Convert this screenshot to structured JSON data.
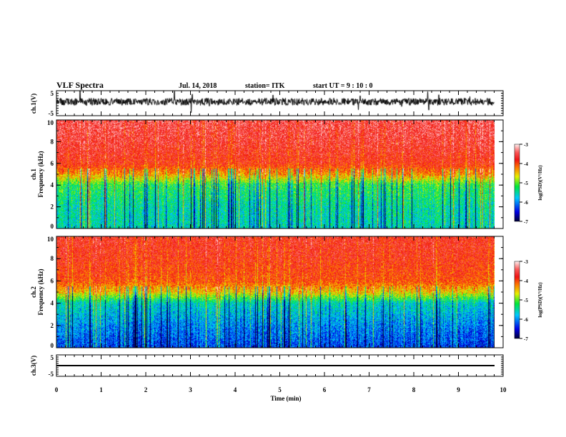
{
  "header": {
    "title": "VLF Spectra",
    "date": "Jul. 14, 2018",
    "station": "station= ITK",
    "start": "start UT =  9 : 10 : 0"
  },
  "colors": {
    "trace": "#000000",
    "background": "#ffffff"
  },
  "chart_data": [
    {
      "type": "line",
      "name": "ch1-waveform",
      "ylabel": "ch.1(V)",
      "ylim": [
        -5,
        5
      ],
      "yticks": [
        "5",
        "-5"
      ],
      "xlim": [
        0,
        10
      ],
      "data_end_min": 9.8,
      "description_values": "noisy broadband waveform, mostly within about -2..3 V with spikes to limits"
    },
    {
      "type": "heatmap",
      "name": "ch1-spectrogram",
      "ylabel": "ch.1\nFrequency (kHz)",
      "ylabel_lines": [
        "ch.1",
        "Frequency (kHz)"
      ],
      "ylim": [
        0,
        10
      ],
      "yticks": [
        "0",
        "2",
        "4",
        "6",
        "8",
        "10"
      ],
      "xlim": [
        0,
        10
      ],
      "colorbar": {
        "label": "log(PSD)(V²/Hz)",
        "range": [
          -7,
          -3
        ],
        "ticks": [
          "-3",
          "-4",
          "-5",
          "-6",
          "-7"
        ]
      },
      "level_profile": {
        "freq_khz": [
          0,
          2,
          4,
          5,
          6,
          8,
          10
        ],
        "log_psd": [
          -5.6,
          -5.5,
          -5.2,
          -4.3,
          -3.8,
          -3.6,
          -3.5
        ]
      }
    },
    {
      "type": "heatmap",
      "name": "ch2-spectrogram",
      "ylabel_lines": [
        "ch.2",
        "Frequency (kHz)"
      ],
      "ylim": [
        0,
        10
      ],
      "yticks": [
        "0",
        "2",
        "4",
        "6",
        "8",
        "10"
      ],
      "xlim": [
        0,
        10
      ],
      "colorbar": {
        "label": "log(PSD)(V²/Hz)",
        "range": [
          -7,
          -3
        ],
        "ticks": [
          "-3",
          "-4",
          "-5",
          "-6",
          "-7"
        ]
      },
      "level_profile": {
        "freq_khz": [
          0,
          2,
          4,
          5,
          6,
          8,
          10
        ],
        "log_psd": [
          -6.3,
          -6.0,
          -5.6,
          -4.5,
          -4.0,
          -3.8,
          -3.7
        ]
      }
    },
    {
      "type": "line",
      "name": "ch3-waveform",
      "ylabel": "ch.3(V)",
      "ylim": [
        -5,
        5
      ],
      "yticks": [
        "5",
        "-5"
      ],
      "x": [
        0,
        9.8
      ],
      "y": [
        -1,
        -1
      ]
    }
  ],
  "xaxis": {
    "label": "Time (min)",
    "ticks": [
      "0",
      "1",
      "2",
      "3",
      "4",
      "5",
      "6",
      "7",
      "8",
      "9",
      "10"
    ]
  }
}
